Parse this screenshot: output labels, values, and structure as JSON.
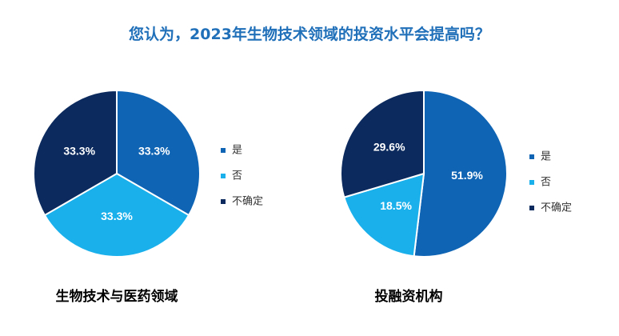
{
  "title": "您认为，2023年生物技术领域的投资水平会提高吗？",
  "colors": {
    "yes": "#0f64b4",
    "no": "#1ab0ec",
    "unsure": "#0c2a5e"
  },
  "chart_data": [
    {
      "type": "pie",
      "title": "生物技术与医药领域",
      "legend_position": "right",
      "slices": [
        {
          "label": "是",
          "value": 33.3,
          "display": "33.3%",
          "color_key": "yes"
        },
        {
          "label": "否",
          "value": 33.3,
          "display": "33.3%",
          "color_key": "no"
        },
        {
          "label": "不确定",
          "value": 33.3,
          "display": "33.3%",
          "color_key": "unsure"
        }
      ]
    },
    {
      "type": "pie",
      "title": "投融资机构",
      "legend_position": "right",
      "slices": [
        {
          "label": "是",
          "value": 51.9,
          "display": "51.9%",
          "color_key": "yes"
        },
        {
          "label": "否",
          "value": 18.5,
          "display": "18.5%",
          "color_key": "no"
        },
        {
          "label": "不确定",
          "value": 29.6,
          "display": "29.6%",
          "color_key": "unsure"
        }
      ]
    }
  ]
}
